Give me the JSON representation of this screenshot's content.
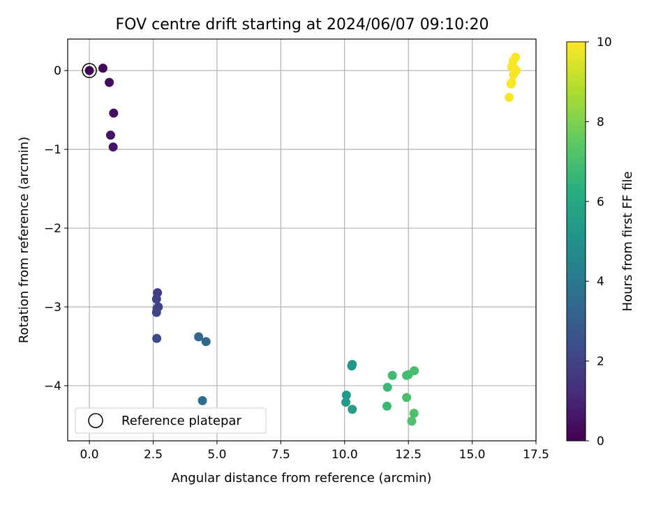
{
  "chart_data": {
    "type": "scatter",
    "title": "FOV centre drift starting at 2024/06/07 09:10:20",
    "xlabel": "Angular distance from reference (arcmin)",
    "ylabel": "Rotation from reference (arcmin)",
    "xlim": [
      -0.85,
      17.5
    ],
    "ylim": [
      -4.7,
      0.4
    ],
    "xticks": [
      0.0,
      2.5,
      5.0,
      7.5,
      10.0,
      12.5,
      15.0,
      17.5
    ],
    "xtick_labels": [
      "0.0",
      "2.5",
      "5.0",
      "7.5",
      "10.0",
      "12.5",
      "15.0",
      "17.5"
    ],
    "yticks": [
      0,
      -1,
      -2,
      -3,
      -4
    ],
    "ytick_labels": [
      "0",
      "−1",
      "−2",
      "−3",
      "−4"
    ],
    "grid": true,
    "colormap": "viridis",
    "colorbar": {
      "label": "Hours from first FF file",
      "range": [
        0,
        10
      ],
      "ticks": [
        0,
        2,
        4,
        6,
        8,
        10
      ],
      "tick_labels": [
        "0",
        "2",
        "4",
        "6",
        "8",
        "10"
      ]
    },
    "legend": {
      "position": "lower-left",
      "entries": [
        "Reference platepar"
      ]
    },
    "reference_point": {
      "x": 0.0,
      "y": 0.0
    },
    "points": [
      {
        "x": 0.0,
        "y": 0.0,
        "t": 0.0
      },
      {
        "x": 0.53,
        "y": 0.03,
        "t": 0.2
      },
      {
        "x": 0.78,
        "y": -0.15,
        "t": 0.3
      },
      {
        "x": 0.95,
        "y": -0.54,
        "t": 0.4
      },
      {
        "x": 0.83,
        "y": -0.82,
        "t": 0.5
      },
      {
        "x": 0.93,
        "y": -0.97,
        "t": 0.6
      },
      {
        "x": 2.67,
        "y": -2.82,
        "t": 1.8
      },
      {
        "x": 2.63,
        "y": -2.9,
        "t": 1.9
      },
      {
        "x": 2.7,
        "y": -3.0,
        "t": 2.0
      },
      {
        "x": 2.65,
        "y": -3.02,
        "t": 2.0
      },
      {
        "x": 2.63,
        "y": -3.07,
        "t": 2.1
      },
      {
        "x": 2.64,
        "y": -3.4,
        "t": 2.2
      },
      {
        "x": 4.28,
        "y": -3.38,
        "t": 3.3
      },
      {
        "x": 4.57,
        "y": -3.44,
        "t": 3.4
      },
      {
        "x": 4.43,
        "y": -4.19,
        "t": 3.5
      },
      {
        "x": 10.3,
        "y": -3.73,
        "t": 5.3
      },
      {
        "x": 10.28,
        "y": -3.75,
        "t": 5.3
      },
      {
        "x": 10.07,
        "y": -4.12,
        "t": 5.4
      },
      {
        "x": 10.05,
        "y": -4.21,
        "t": 5.4
      },
      {
        "x": 10.3,
        "y": -4.3,
        "t": 5.5
      },
      {
        "x": 11.68,
        "y": -4.02,
        "t": 6.7
      },
      {
        "x": 11.87,
        "y": -3.87,
        "t": 6.8
      },
      {
        "x": 11.66,
        "y": -4.26,
        "t": 6.7
      },
      {
        "x": 12.43,
        "y": -3.87,
        "t": 6.9
      },
      {
        "x": 12.5,
        "y": -3.86,
        "t": 6.9
      },
      {
        "x": 12.73,
        "y": -3.81,
        "t": 7.0
      },
      {
        "x": 12.43,
        "y": -4.15,
        "t": 7.0
      },
      {
        "x": 12.72,
        "y": -4.35,
        "t": 7.1
      },
      {
        "x": 12.63,
        "y": -4.45,
        "t": 7.1
      },
      {
        "x": 16.7,
        "y": 0.17,
        "t": 9.9
      },
      {
        "x": 16.6,
        "y": 0.12,
        "t": 9.9
      },
      {
        "x": 16.55,
        "y": 0.05,
        "t": 9.9
      },
      {
        "x": 16.65,
        "y": 0.03,
        "t": 9.9
      },
      {
        "x": 16.73,
        "y": 0.0,
        "t": 9.9
      },
      {
        "x": 16.62,
        "y": -0.05,
        "t": 9.9
      },
      {
        "x": 16.55,
        "y": -0.15,
        "t": 9.9
      },
      {
        "x": 16.52,
        "y": -0.17,
        "t": 9.9
      },
      {
        "x": 16.45,
        "y": -0.34,
        "t": 9.9
      }
    ]
  }
}
